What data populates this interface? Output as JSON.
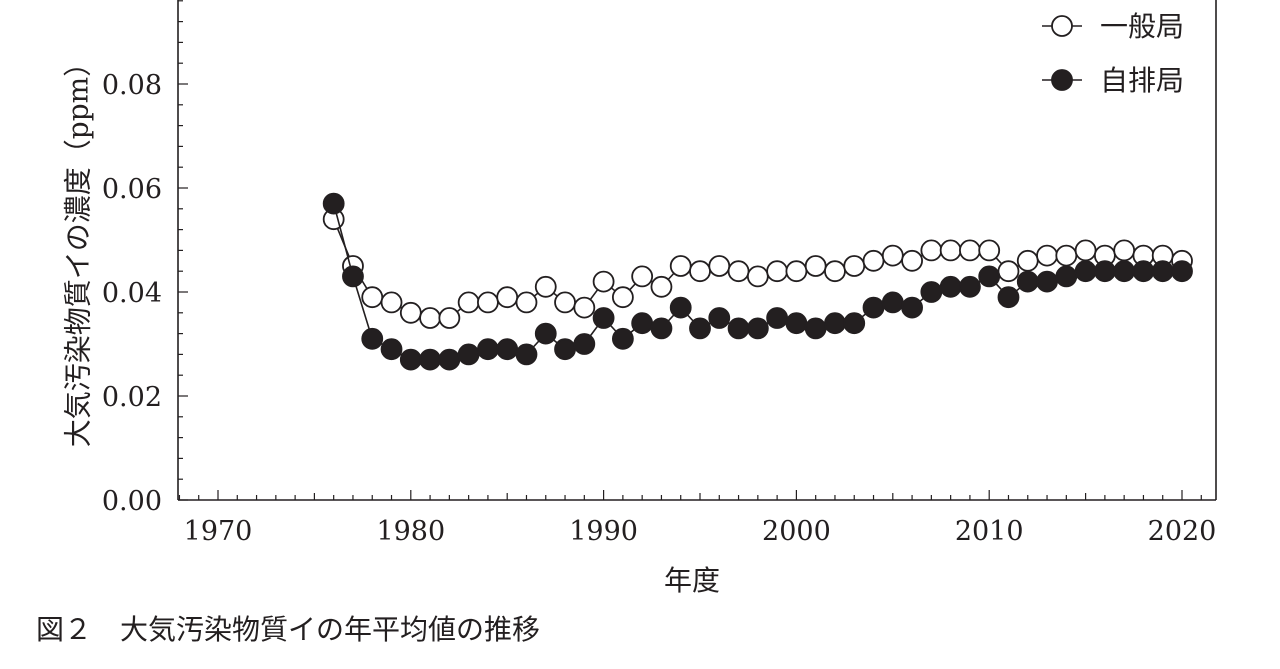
{
  "caption": "図２　大気汚染物質イの年平均値の推移",
  "chart_data": {
    "type": "line",
    "xlabel": "年度",
    "ylabel": "大気汚染物質イの濃度（ppm）",
    "xlim": [
      1968,
      2022
    ],
    "ylim": [
      0,
      0.095
    ],
    "xticks": [
      1970,
      1980,
      1990,
      2000,
      2010,
      2020
    ],
    "xtick_labels": [
      "1970",
      "1980",
      "1990",
      "2000",
      "2010",
      "2020"
    ],
    "yticks": [
      0,
      0.02,
      0.04,
      0.06,
      0.08
    ],
    "ytick_labels": [
      "0.00",
      "0.02",
      "0.04",
      "0.06",
      "0.08"
    ],
    "legend_position": "top-right",
    "grid": false,
    "series": [
      {
        "name": "一般局",
        "marker": "open-circle",
        "x": [
          1976,
          1977,
          1978,
          1979,
          1980,
          1981,
          1982,
          1983,
          1984,
          1985,
          1986,
          1987,
          1988,
          1989,
          1990,
          1991,
          1992,
          1993,
          1994,
          1995,
          1996,
          1997,
          1998,
          1999,
          2000,
          2001,
          2002,
          2003,
          2004,
          2005,
          2006,
          2007,
          2008,
          2009,
          2010,
          2011,
          2012,
          2013,
          2014,
          2015,
          2016,
          2017,
          2018,
          2019,
          2020
        ],
        "y": [
          0.054,
          0.045,
          0.039,
          0.038,
          0.036,
          0.035,
          0.035,
          0.038,
          0.038,
          0.039,
          0.038,
          0.041,
          0.038,
          0.037,
          0.042,
          0.039,
          0.043,
          0.041,
          0.045,
          0.044,
          0.045,
          0.044,
          0.043,
          0.044,
          0.044,
          0.045,
          0.044,
          0.045,
          0.046,
          0.047,
          0.046,
          0.048,
          0.048,
          0.048,
          0.048,
          0.044,
          0.046,
          0.047,
          0.047,
          0.048,
          0.047,
          0.048,
          0.047,
          0.047,
          0.046
        ]
      },
      {
        "name": "自排局",
        "marker": "filled-circle",
        "x": [
          1976,
          1977,
          1978,
          1979,
          1980,
          1981,
          1982,
          1983,
          1984,
          1985,
          1986,
          1987,
          1988,
          1989,
          1990,
          1991,
          1992,
          1993,
          1994,
          1995,
          1996,
          1997,
          1998,
          1999,
          2000,
          2001,
          2002,
          2003,
          2004,
          2005,
          2006,
          2007,
          2008,
          2009,
          2010,
          2011,
          2012,
          2013,
          2014,
          2015,
          2016,
          2017,
          2018,
          2019,
          2020
        ],
        "y": [
          0.057,
          0.043,
          0.031,
          0.029,
          0.027,
          0.027,
          0.027,
          0.028,
          0.029,
          0.029,
          0.028,
          0.032,
          0.029,
          0.03,
          0.035,
          0.031,
          0.034,
          0.033,
          0.037,
          0.033,
          0.035,
          0.033,
          0.033,
          0.035,
          0.034,
          0.033,
          0.034,
          0.034,
          0.037,
          0.038,
          0.037,
          0.04,
          0.041,
          0.041,
          0.043,
          0.039,
          0.042,
          0.042,
          0.043,
          0.044,
          0.044,
          0.044,
          0.044,
          0.044,
          0.044
        ]
      }
    ]
  }
}
